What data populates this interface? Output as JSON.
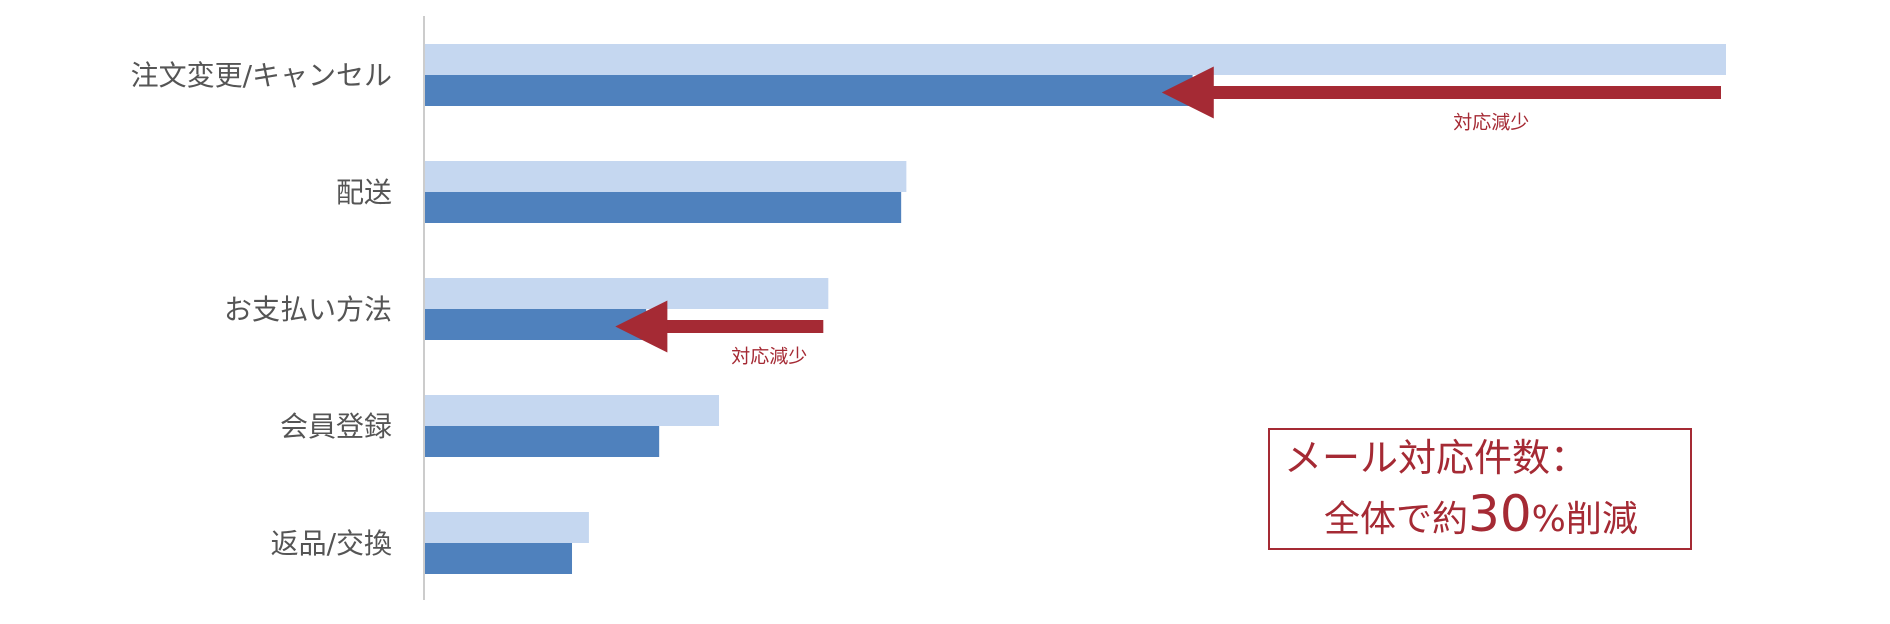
{
  "chart_data": {
    "type": "bar",
    "orientation": "horizontal",
    "categories": [
      "注文変更/キャンセル",
      "配送",
      "お支払い方法",
      "会員登録",
      "返品/交換"
    ],
    "series": [
      {
        "values": [
          100,
          37,
          31,
          22.6,
          12.6
        ]
      },
      {
        "values": [
          59,
          36.6,
          17,
          18,
          11.3
        ]
      }
    ],
    "xlim": [
      0,
      100
    ],
    "grid": false,
    "legend": "none",
    "colors": [
      "#c5d7f0",
      "#4f81bd"
    ],
    "annotations": [
      {
        "category_index": 0,
        "label": "対応減少",
        "from": 100,
        "to": 59,
        "color": "#a52a34"
      },
      {
        "category_index": 2,
        "label": "対応減少",
        "from": 31,
        "to": 17,
        "color": "#a52a34"
      }
    ]
  },
  "callout": {
    "line1": "メール対応件数：",
    "line2_prefix": "全体で約",
    "line2_number": "30",
    "line2_suffix": "%削減"
  }
}
